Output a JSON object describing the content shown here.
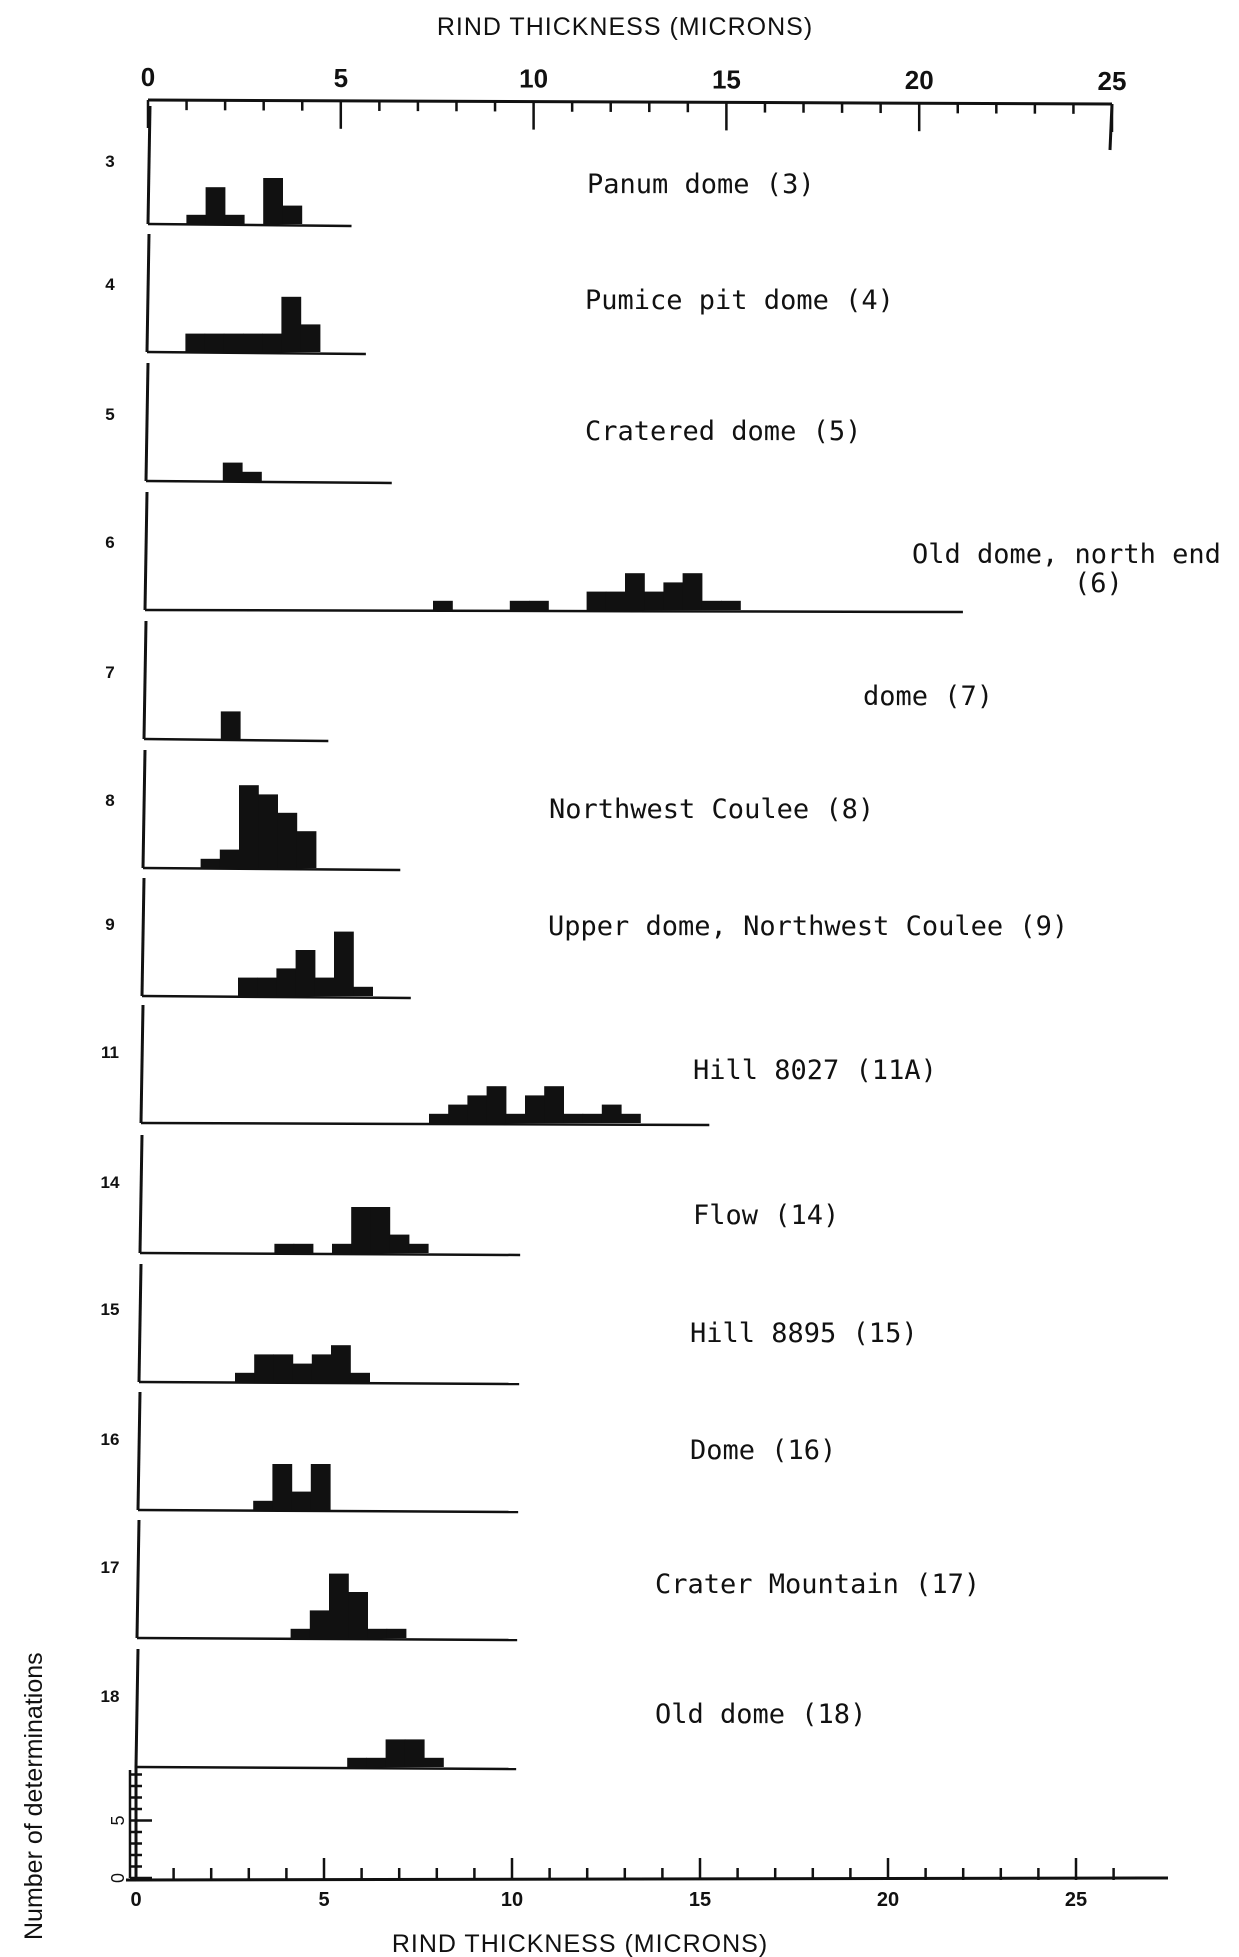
{
  "chart_data": {
    "type": "bar",
    "title": "",
    "xlabel_top": "RIND THICKNESS (MICRONS)",
    "xlabel_bottom": "RIND THICKNESS (MICRONS)",
    "ylabel": "Number of determinations",
    "xlim": [
      0,
      25
    ],
    "x_ticks": [
      0,
      5,
      10,
      15,
      20,
      25
    ],
    "y_scale_ticks": [
      0,
      5
    ],
    "bin_width": 0.5,
    "panels": [
      {
        "number": "3",
        "label": "Panum dome (3)",
        "line_end": 5.3,
        "bins": [
          [
            1.0,
            1
          ],
          [
            1.5,
            4
          ],
          [
            2.0,
            1
          ],
          [
            3.0,
            5
          ],
          [
            3.5,
            2
          ]
        ]
      },
      {
        "number": "4",
        "label": "Pumice pit dome (4)",
        "line_end": 5.7,
        "bins": [
          [
            1.0,
            2
          ],
          [
            1.5,
            2
          ],
          [
            2.0,
            2
          ],
          [
            2.5,
            2
          ],
          [
            3.0,
            2
          ],
          [
            3.5,
            6
          ],
          [
            4.0,
            3
          ]
        ]
      },
      {
        "number": "5",
        "label": "Cratered dome (5)",
        "line_end": 6.4,
        "bins": [
          [
            2.0,
            2
          ],
          [
            2.5,
            1
          ]
        ]
      },
      {
        "number": "6",
        "label": "Old dome, north end",
        "label2": "(6)",
        "line_end": 21.3,
        "bins": [
          [
            7.5,
            1
          ],
          [
            9.5,
            1
          ],
          [
            10.0,
            1
          ],
          [
            11.5,
            2
          ],
          [
            12.0,
            2
          ],
          [
            12.5,
            4
          ],
          [
            13.0,
            2
          ],
          [
            13.5,
            3
          ],
          [
            14.0,
            4
          ],
          [
            14.5,
            1
          ],
          [
            15.0,
            1
          ]
        ]
      },
      {
        "number": "7",
        "label": "dome (7)",
        "line_end": 4.8,
        "bins": [
          [
            2.0,
            3
          ]
        ]
      },
      {
        "number": "8",
        "label": "Northwest Coulee (8)",
        "line_end": 6.7,
        "bins": [
          [
            1.5,
            1
          ],
          [
            2.0,
            2
          ],
          [
            2.5,
            9
          ],
          [
            3.0,
            8
          ],
          [
            3.5,
            6
          ],
          [
            4.0,
            4
          ]
        ]
      },
      {
        "number": "9",
        "label": "Upper dome, Northwest Coulee (9)",
        "line_end": 7.0,
        "bins": [
          [
            2.5,
            2
          ],
          [
            3.0,
            2
          ],
          [
            3.5,
            3
          ],
          [
            4.0,
            5
          ],
          [
            4.5,
            2
          ],
          [
            5.0,
            7
          ],
          [
            5.5,
            1
          ]
        ]
      },
      {
        "number": "11",
        "label": "Hill 8027 (11A)",
        "line_end": 14.8,
        "bins": [
          [
            7.5,
            1
          ],
          [
            8.0,
            2
          ],
          [
            8.5,
            3
          ],
          [
            9.0,
            4
          ],
          [
            9.5,
            1
          ],
          [
            10.0,
            3
          ],
          [
            10.5,
            4
          ],
          [
            11.0,
            1
          ],
          [
            11.5,
            1
          ],
          [
            12.0,
            2
          ],
          [
            12.5,
            1
          ]
        ]
      },
      {
        "number": "14",
        "label": "Flow (14)",
        "line_end": 9.9,
        "bins": [
          [
            3.5,
            1
          ],
          [
            4.0,
            1
          ],
          [
            5.0,
            1
          ],
          [
            5.5,
            5
          ],
          [
            6.0,
            5
          ],
          [
            6.5,
            2
          ],
          [
            7.0,
            1
          ]
        ]
      },
      {
        "number": "15",
        "label": "Hill 8895 (15)",
        "line_end": 9.9,
        "bins": [
          [
            2.5,
            1
          ],
          [
            3.0,
            3
          ],
          [
            3.5,
            3
          ],
          [
            4.0,
            2
          ],
          [
            4.5,
            3
          ],
          [
            5.0,
            4
          ],
          [
            5.5,
            1
          ]
        ]
      },
      {
        "number": "16",
        "label": "Dome (16)",
        "line_end": 9.9,
        "bins": [
          [
            3.0,
            1
          ],
          [
            3.5,
            5
          ],
          [
            4.0,
            2
          ],
          [
            4.5,
            5
          ]
        ]
      },
      {
        "number": "17",
        "label": "Crater Mountain (17)",
        "line_end": 9.9,
        "bins": [
          [
            4.0,
            1
          ],
          [
            4.5,
            3
          ],
          [
            5.0,
            7
          ],
          [
            5.5,
            5
          ],
          [
            6.0,
            1
          ],
          [
            6.5,
            1
          ]
        ]
      },
      {
        "number": "18",
        "label": "Old dome (18)",
        "line_end": 9.9,
        "bins": [
          [
            5.5,
            1
          ],
          [
            6.0,
            1
          ],
          [
            6.5,
            3
          ],
          [
            7.0,
            3
          ],
          [
            7.5,
            1
          ]
        ]
      }
    ]
  }
}
